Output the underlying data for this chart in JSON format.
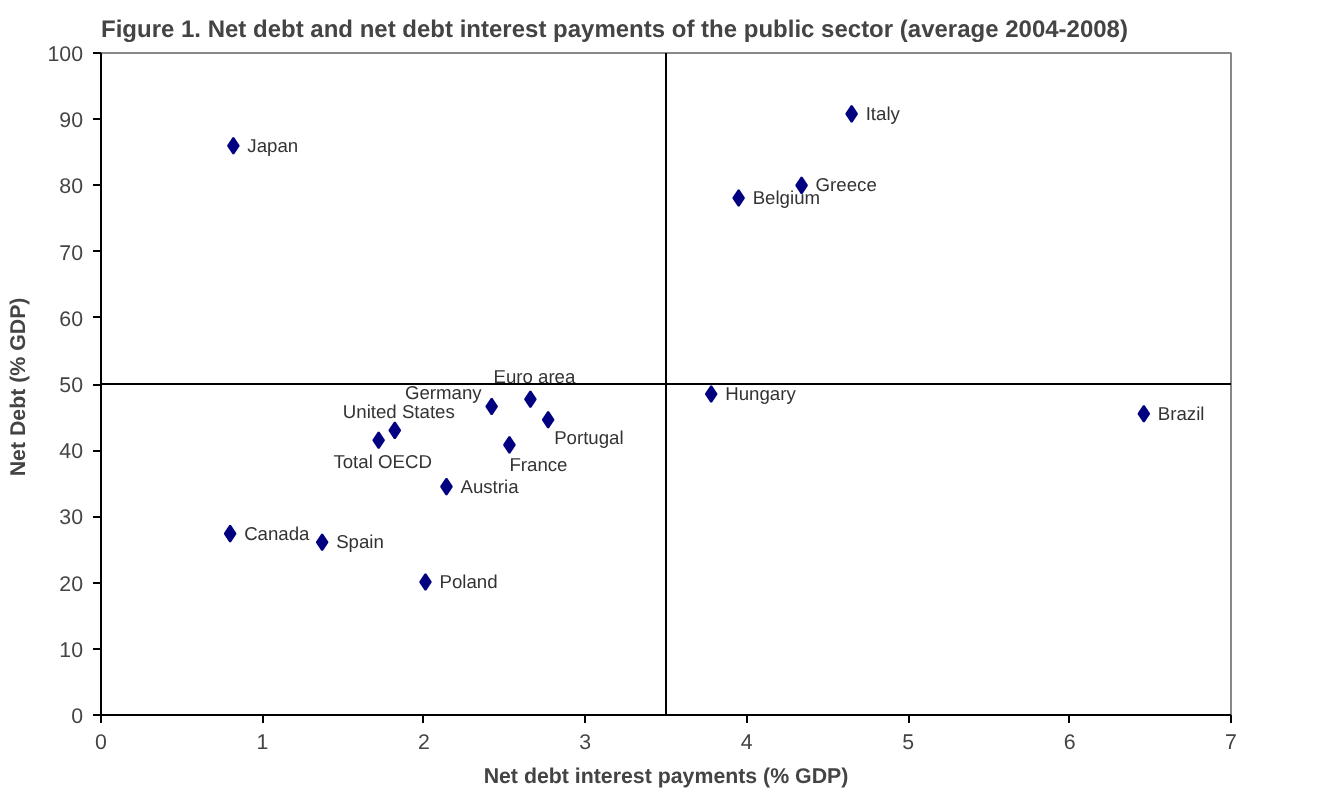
{
  "chart_data": {
    "type": "scatter",
    "title": "Figure 1. Net debt and net debt interest payments of the public sector (average 2004-2008)",
    "xlabel": "Net debt interest payments (% GDP)",
    "ylabel": "Net Debt  (% GDP)",
    "series": [
      {
        "color": "#000080",
        "x": [
          0.82,
          0.8,
          1.37,
          2.01,
          2.14,
          1.72,
          1.82,
          2.42,
          2.66,
          2.77,
          2.53,
          3.78,
          4.65,
          4.34,
          3.95,
          6.46
        ],
        "values": [
          86,
          27.4,
          26.1,
          20.1,
          34.5,
          41.5,
          43.0,
          46.6,
          47.7,
          44.6,
          40.8,
          48.5,
          90.8,
          80.0,
          78.1,
          45.5
        ]
      }
    ],
    "annotations": [
      {
        "text": "Japan",
        "x": 0.82,
        "y": 86
      },
      {
        "text": "Canada",
        "x": 0.8,
        "y": 27.4
      },
      {
        "text": "Spain",
        "x": 1.37,
        "y": 26.1
      },
      {
        "text": "Poland",
        "x": 2.01,
        "y": 20.1
      },
      {
        "text": "Austria",
        "x": 2.14,
        "y": 34.5
      },
      {
        "text": "Total OECD",
        "x": 1.72,
        "y": 41.5
      },
      {
        "text": "United States",
        "x": 1.82,
        "y": 43.0
      },
      {
        "text": "Germany",
        "x": 2.42,
        "y": 46.6
      },
      {
        "text": "Euro area",
        "x": 2.66,
        "y": 47.7
      },
      {
        "text": "Portugal",
        "x": 2.77,
        "y": 44.6
      },
      {
        "text": "France",
        "x": 2.53,
        "y": 40.8
      },
      {
        "text": "Hungary",
        "x": 3.78,
        "y": 48.5
      },
      {
        "text": "Italy",
        "x": 4.65,
        "y": 90.8
      },
      {
        "text": "Greece",
        "x": 4.34,
        "y": 80.0
      },
      {
        "text": "Belgium",
        "x": 3.95,
        "y": 78.1
      },
      {
        "text": "Brazil",
        "x": 6.46,
        "y": 45.5
      }
    ],
    "ref_lines": [
      {
        "axis": "x",
        "value": 3.5,
        "color": "#000000"
      },
      {
        "axis": "y",
        "value": 50,
        "color": "#000000"
      }
    ],
    "xlim": [
      0,
      7
    ],
    "xticks": [
      0,
      1,
      2,
      3,
      4,
      5,
      6,
      7
    ],
    "ylim": [
      0,
      100
    ],
    "yticks": [
      0,
      10,
      20,
      30,
      40,
      50,
      60,
      70,
      80,
      90,
      100
    ],
    "grid": false,
    "marker": "diamond"
  }
}
